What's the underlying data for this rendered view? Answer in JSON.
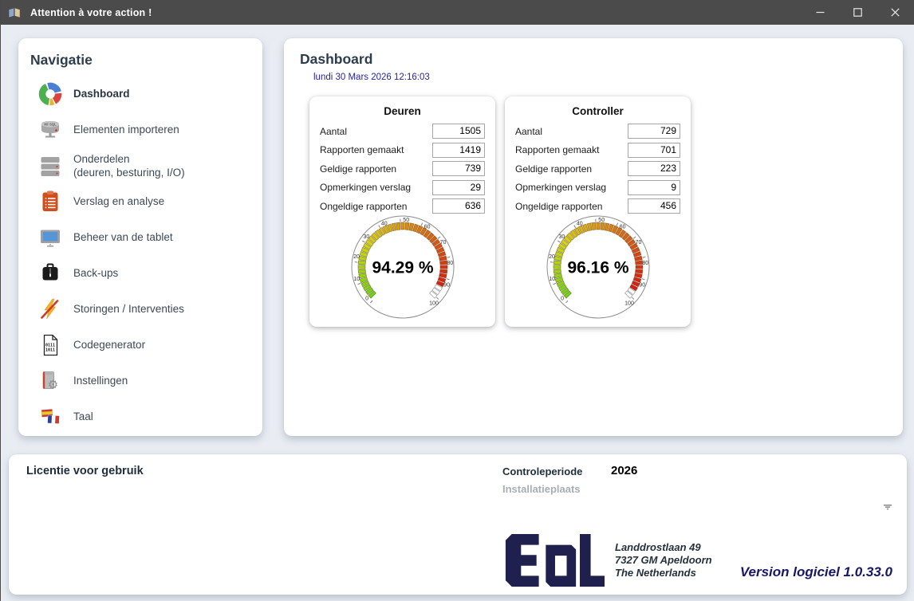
{
  "window": {
    "title": "Attention à votre action !",
    "controls": [
      "minimize",
      "maximize",
      "close"
    ]
  },
  "sidebar": {
    "title": "Navigatie",
    "items": [
      {
        "id": "dashboard",
        "label": "Dashboard",
        "icon": "pie-chart-icon",
        "active": true
      },
      {
        "id": "elementen-importeren",
        "label": "Elementen importeren",
        "icon": "hfsql-server-icon",
        "active": false
      },
      {
        "id": "onderdelen",
        "label": "Onderdelen",
        "sublabel": "(deuren, besturing, I/O)",
        "icon": "server-stack-icon",
        "active": false
      },
      {
        "id": "verslag-en-analyse",
        "label": "Verslag en analyse",
        "icon": "clipboard-icon",
        "active": false
      },
      {
        "id": "beheer-van-de-tablet",
        "label": "Beheer van de tablet",
        "icon": "monitor-icon",
        "active": false
      },
      {
        "id": "back-ups",
        "label": "Back-ups",
        "icon": "backup-bag-icon",
        "active": false
      },
      {
        "id": "storingen-interventies",
        "label": "Storingen / Interventies",
        "icon": "lightning-slash-icon",
        "active": false
      },
      {
        "id": "codegenerator",
        "label": "Codegenerator",
        "icon": "binary-document-icon",
        "active": false
      },
      {
        "id": "instellingen",
        "label": "Instellingen",
        "icon": "settings-book-icon",
        "active": false
      },
      {
        "id": "taal",
        "label": "Taal",
        "icon": "language-flags-icon",
        "active": false
      }
    ]
  },
  "main": {
    "title": "Dashboard",
    "datetime": "lundi 30 Mars 2026  12:16:03",
    "cards": [
      {
        "title": "Deuren",
        "fields": [
          {
            "label": "Aantal",
            "value": "1505"
          },
          {
            "label": "Rapporten gemaakt",
            "value": "1419"
          },
          {
            "label": "Geldige rapporten",
            "value": "739"
          },
          {
            "label": "Opmerkingen verslag",
            "value": "29"
          },
          {
            "label": "Ongeldige rapporten",
            "value": "636"
          }
        ],
        "gauge": {
          "type": "gauge",
          "value": 94.29,
          "display": "94.29 %",
          "min": 0,
          "max": 100,
          "tick_step": 10
        }
      },
      {
        "title": "Controller",
        "fields": [
          {
            "label": "Aantal",
            "value": "729"
          },
          {
            "label": "Rapporten gemaakt",
            "value": "701"
          },
          {
            "label": "Geldige rapporten",
            "value": "223"
          },
          {
            "label": "Opmerkingen verslag",
            "value": "9"
          },
          {
            "label": "Ongeldige rapporten",
            "value": "456"
          }
        ],
        "gauge": {
          "type": "gauge",
          "value": 96.16,
          "display": "96.16 %",
          "min": 0,
          "max": 100,
          "tick_step": 10
        }
      }
    ]
  },
  "footer": {
    "license_label": "Licentie voor gebruik",
    "control_period_label": "Controleperiode",
    "control_period_value": "2026",
    "installation_label": "Installatieplaats",
    "logo_text": "EAL",
    "address_lines": [
      "Landdrostlaan 49",
      "7327 GM Apeldoorn",
      "The Netherlands"
    ],
    "version": "Version logiciel 1.0.33.0"
  },
  "colors": {
    "titlebar": "#4b4b4b",
    "background": "#e9edf3",
    "panel": "#ffffff",
    "heading": "#2e3d4e",
    "date_text": "#2424a8",
    "logo_navy": "#20204e",
    "gauge_low": "#6fce1e",
    "gauge_high": "#cc2a0c",
    "muted_label": "#a8adb5"
  }
}
